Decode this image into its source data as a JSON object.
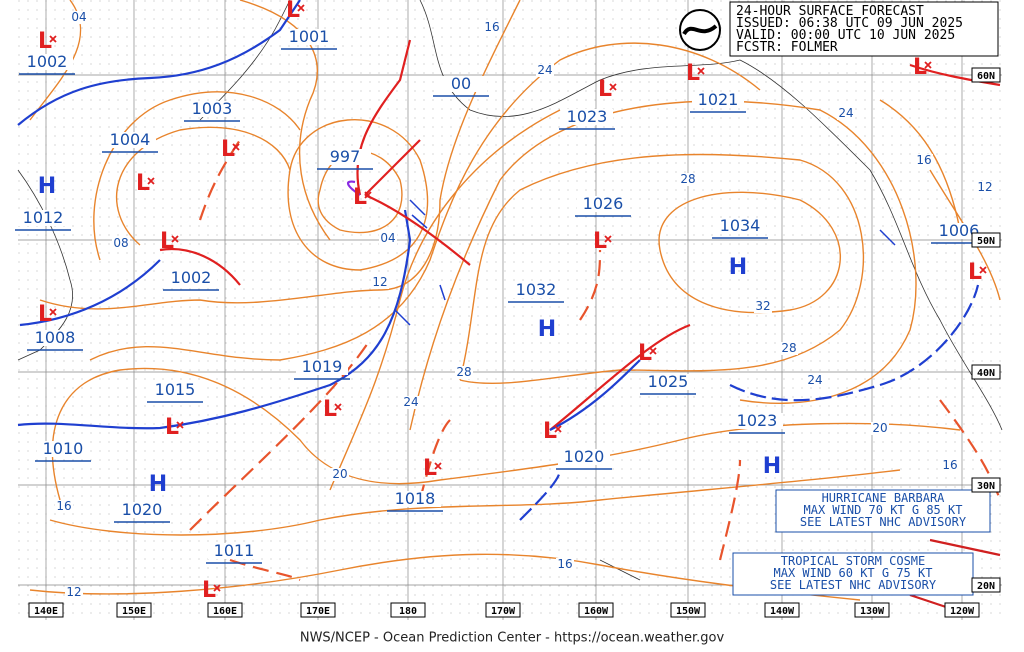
{
  "header": {
    "lines": [
      "24-HOUR SURFACE FORECAST",
      "ISSUED: 06:38 UTC 09 JUN 2025",
      "VALID:  00:00 UTC 10 JUN 2025",
      "FCSTR:  FOLMER"
    ]
  },
  "pressure_labels": [
    "1002",
    "1001",
    "1003",
    "1004",
    "1012",
    "997",
    "00",
    "1023",
    "1021",
    "1026",
    "1034",
    "1006",
    "1002",
    "1032",
    "1008",
    "1019",
    "1015",
    "1025",
    "1023",
    "1010",
    "1020",
    "1020",
    "1018",
    "1011"
  ],
  "isobar_labels": [
    "04",
    "16",
    "24",
    "24",
    "16",
    "12",
    "28",
    "08",
    "04",
    "12",
    "32",
    "28",
    "24",
    "28",
    "24",
    "20",
    "16",
    "20",
    "16",
    "16",
    "12"
  ],
  "high_symbol": "H",
  "low_symbol": "L",
  "latitude_labels": [
    "60N",
    "50N",
    "40N",
    "30N",
    "20N"
  ],
  "longitude_labels": [
    "140E",
    "150E",
    "160E",
    "170E",
    "180",
    "170W",
    "160W",
    "150W",
    "140W",
    "130W",
    "120W"
  ],
  "advisories": [
    {
      "lines": [
        "HURRICANE BARBARA",
        "MAX WIND 70 KT G 85 KT",
        "SEE LATEST NHC ADVISORY"
      ]
    },
    {
      "lines": [
        "TROPICAL STORM COSME",
        "MAX WIND 60 KT G 75 KT",
        "SEE LATEST NHC ADVISORY"
      ]
    }
  ],
  "footer": "NWS/NCEP - Ocean Prediction Center - https://ocean.weather.gov"
}
